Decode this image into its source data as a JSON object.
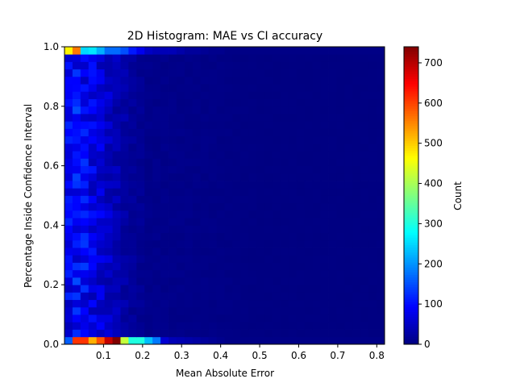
{
  "chart_data": {
    "type": "heatmap",
    "title": "2D Histogram: MAE vs CI accuracy",
    "xlabel": "Mean Absolute Error",
    "ylabel": "Percentage Inside Confidence Interval",
    "xlim": [
      0.0,
      0.82
    ],
    "ylim": [
      0.0,
      1.0
    ],
    "x_ticks": [
      0.1,
      0.2,
      0.3,
      0.4,
      0.5,
      0.6,
      0.7,
      0.8
    ],
    "x_tick_labels": [
      "0.1",
      "0.2",
      "0.3",
      "0.4",
      "0.5",
      "0.6",
      "0.7",
      "0.8"
    ],
    "y_ticks": [
      0.0,
      0.2,
      0.4,
      0.6,
      0.8,
      1.0
    ],
    "y_tick_labels": [
      "0.0",
      "0.2",
      "0.4",
      "0.6",
      "0.8",
      "1.0"
    ],
    "colorbar": {
      "label": "Count",
      "range": [
        0,
        740
      ],
      "ticks": [
        0,
        100,
        200,
        300,
        400,
        500,
        600,
        700
      ],
      "colormap": "jet"
    },
    "x_bin_edges": [
      0.0,
      0.0205,
      0.041,
      0.0615,
      0.082,
      0.1025,
      0.123,
      0.1435,
      0.164,
      0.1845,
      0.205,
      0.2255,
      0.246,
      0.2665,
      0.287,
      0.3075,
      0.328,
      0.3485,
      0.369,
      0.3895,
      0.41,
      0.4305,
      0.451,
      0.4715,
      0.492,
      0.5125,
      0.533,
      0.5535,
      0.574,
      0.5945,
      0.615,
      0.6355,
      0.656,
      0.6765,
      0.697,
      0.7175,
      0.738,
      0.7585,
      0.779,
      0.7995,
      0.82
    ],
    "y_bin_count": 40,
    "notable_bins": {
      "bottom_row_y_0_to_0.025": [
        160,
        610,
        610,
        520,
        590,
        690,
        740,
        420,
        300,
        300,
        230,
        180,
        60,
        40,
        35,
        30,
        25,
        20,
        15,
        10
      ],
      "top_row_y_0.975_to_1.0": [
        470,
        560,
        250,
        260,
        220,
        170,
        170,
        150,
        110,
        80,
        50,
        40,
        40,
        40,
        30,
        20,
        20,
        15,
        10,
        10
      ],
      "typical_interior_low_mae": [
        90,
        110,
        100,
        80,
        70,
        55,
        40,
        30,
        20,
        15
      ]
    }
  }
}
